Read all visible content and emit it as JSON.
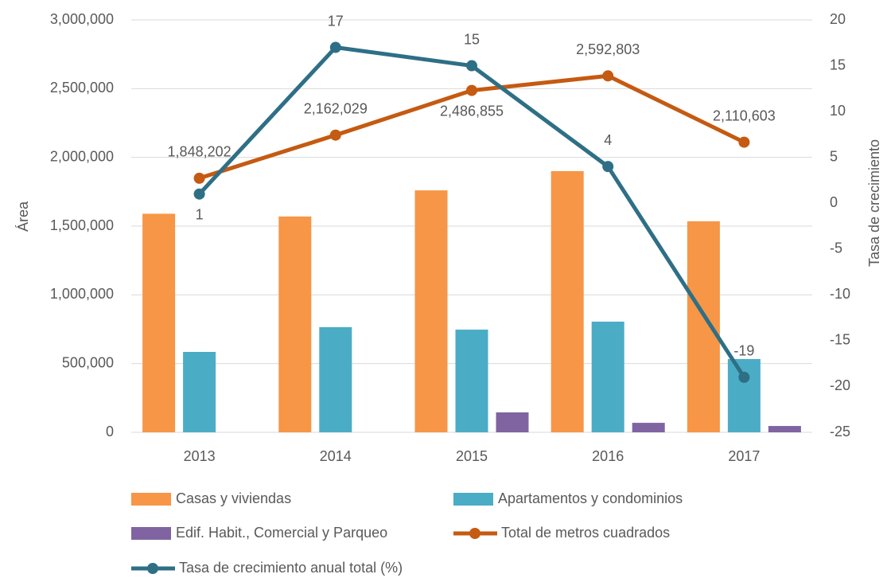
{
  "chart_data": {
    "type": "bar",
    "categories": [
      "2013",
      "2014",
      "2015",
      "2016",
      "2017"
    ],
    "y_label": "Área",
    "y2_label": "Tasa de crecimiento",
    "ylim": [
      0,
      3000000
    ],
    "yticks": [
      0,
      {
        "value": 500000,
        "label": "500,000"
      },
      {
        "value": 1000000,
        "label": "1,000,000"
      },
      {
        "value": 1500000,
        "label": "1,500,000"
      },
      {
        "value": 2000000,
        "label": "2,000,000"
      },
      {
        "value": 2500000,
        "label": "2,500,000"
      },
      {
        "value": 3000000,
        "label": "3,000,000"
      }
    ],
    "y2lim": [
      -25,
      20
    ],
    "y2ticks": [
      -25,
      -20,
      -15,
      -10,
      -5,
      0,
      5,
      10,
      15,
      20
    ],
    "grid": true,
    "series": [
      {
        "name": "Casas y viviendas",
        "type": "bar",
        "color": "#F79646",
        "values": [
          1590000,
          1570000,
          1760000,
          1900000,
          1535000
        ]
      },
      {
        "name": "Apartamentos y condominios",
        "type": "bar",
        "color": "#4BACC6",
        "values": [
          585000,
          765000,
          747000,
          805000,
          533000
        ]
      },
      {
        "name": "Edif. Habit., Comercial y Parqueo",
        "type": "bar",
        "color": "#8064A2",
        "values": [
          0,
          0,
          145000,
          69000,
          46000
        ]
      },
      {
        "name": "Total de metros cuadrados",
        "type": "line",
        "color": "#C55A11",
        "values": [
          1848202,
          2162029,
          2486855,
          2592803,
          2110603
        ],
        "value_labels": [
          "1,848,202",
          "2,162,029",
          "2,486,855",
          "2,592,803",
          "2,110,603"
        ]
      },
      {
        "name": "Tasa de crecimiento anual total (%)",
        "type": "line",
        "axis": "y2",
        "color": "#2E6F86",
        "values": [
          1,
          17,
          15,
          4,
          -19
        ]
      }
    ]
  }
}
